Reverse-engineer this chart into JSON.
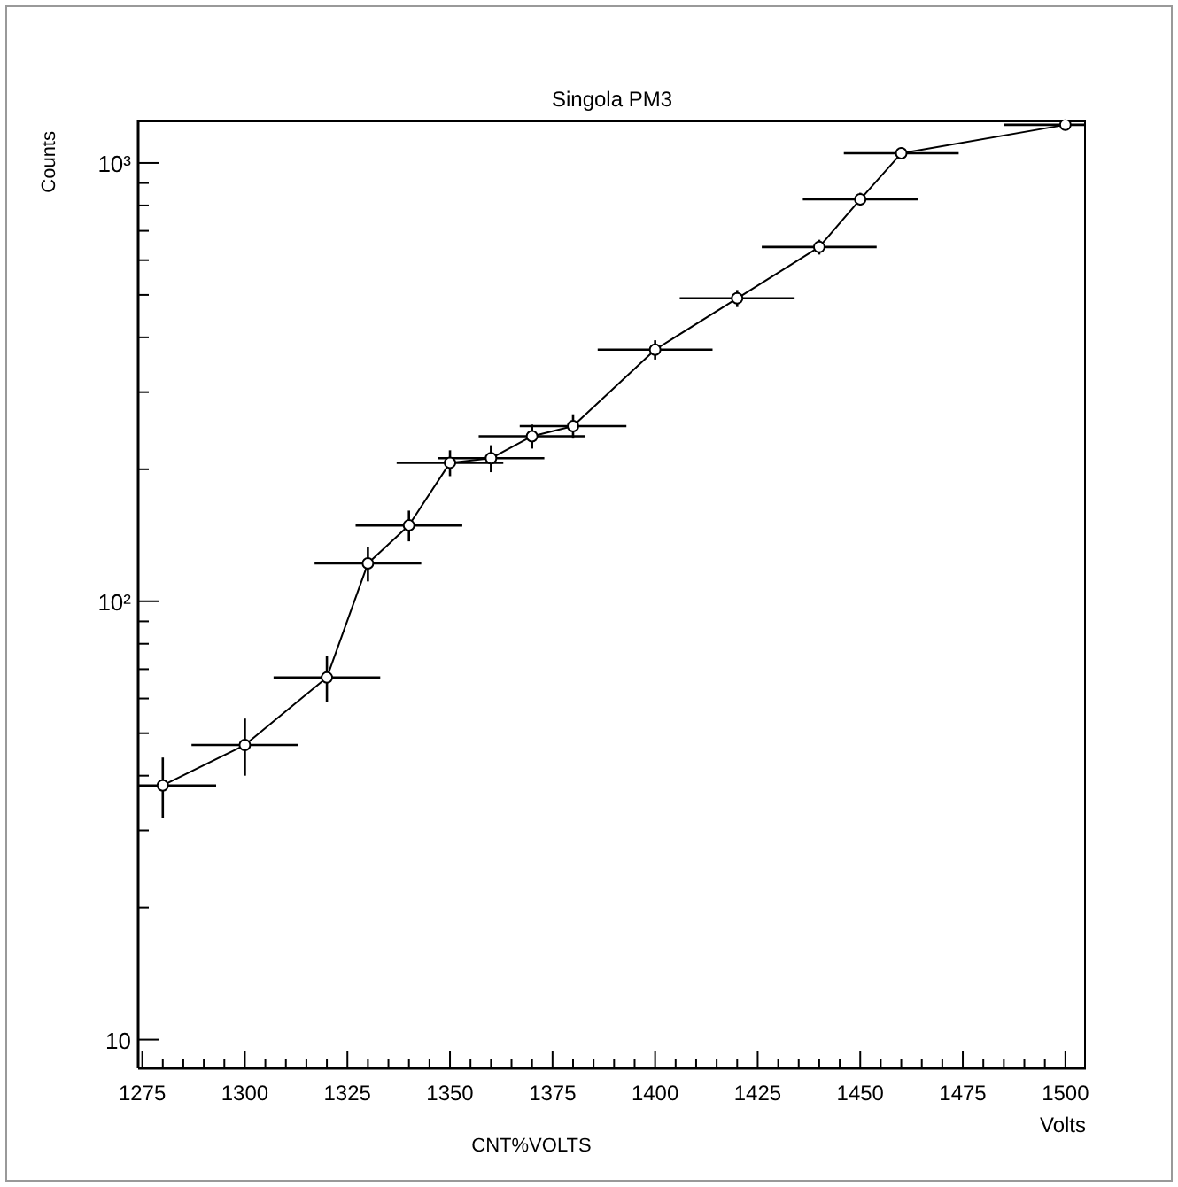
{
  "chart_data": {
    "type": "line",
    "title": "Singola PM3",
    "xlabel": "Volts",
    "ylabel": "Counts",
    "annotations": [
      "CNT%VOLTS"
    ],
    "x": [
      1280,
      1300,
      1320,
      1330,
      1340,
      1350,
      1360,
      1370,
      1380,
      1400,
      1420,
      1440,
      1450,
      1460,
      1500
    ],
    "series": [
      {
        "color": "#000000",
        "values": [
          38,
          47,
          67,
          122,
          149,
          207,
          212,
          238,
          251,
          375,
          491,
          643,
          826,
          1052,
          1222
        ],
        "errors": [
          6,
          7,
          8,
          11,
          12,
          14,
          15,
          15,
          16,
          19,
          22,
          25,
          29,
          32,
          35
        ],
        "xerrors": [
          [
            1274,
            1293
          ],
          13,
          13,
          13,
          13,
          13,
          13,
          13,
          13,
          14,
          14,
          14,
          14,
          14,
          [
            1485,
            1505
          ]
        ]
      }
    ],
    "xlim": [
      1274,
      1505
    ],
    "xticks": [
      1275,
      {
        "value": 1280,
        "label": null
      },
      {
        "value": 1285,
        "label": null
      },
      {
        "value": 1290,
        "label": null
      },
      {
        "value": 1295,
        "label": null
      },
      1300,
      {
        "value": 1305,
        "label": null
      },
      {
        "value": 1310,
        "label": null
      },
      {
        "value": 1315,
        "label": null
      },
      {
        "value": 1320,
        "label": null
      },
      1325,
      {
        "value": 1330,
        "label": null
      },
      {
        "value": 1335,
        "label": null
      },
      {
        "value": 1340,
        "label": null
      },
      {
        "value": 1345,
        "label": null
      },
      1350,
      {
        "value": 1355,
        "label": null
      },
      {
        "value": 1360,
        "label": null
      },
      {
        "value": 1365,
        "label": null
      },
      {
        "value": 1370,
        "label": null
      },
      1375,
      {
        "value": 1380,
        "label": null
      },
      {
        "value": 1385,
        "label": null
      },
      {
        "value": 1390,
        "label": null
      },
      {
        "value": 1395,
        "label": null
      },
      1400,
      {
        "value": 1405,
        "label": null
      },
      {
        "value": 1410,
        "label": null
      },
      {
        "value": 1415,
        "label": null
      },
      {
        "value": 1420,
        "label": null
      },
      1425,
      {
        "value": 1430,
        "label": null
      },
      {
        "value": 1435,
        "label": null
      },
      {
        "value": 1440,
        "label": null
      },
      {
        "value": 1445,
        "label": null
      },
      1450,
      {
        "value": 1455,
        "label": null
      },
      {
        "value": 1460,
        "label": null
      },
      {
        "value": 1465,
        "label": null
      },
      {
        "value": 1470,
        "label": null
      },
      1475,
      {
        "value": 1480,
        "label": null
      },
      {
        "value": 1485,
        "label": null
      },
      {
        "value": 1490,
        "label": null
      },
      {
        "value": 1495,
        "label": null
      },
      1500
    ],
    "ylim": [
      8.6,
      1250
    ],
    "yticks": [
      10,
      {
        "value": 20,
        "label": null
      },
      {
        "value": 30,
        "label": null
      },
      {
        "value": 40,
        "label": null
      },
      {
        "value": 50,
        "label": null
      },
      {
        "value": 60,
        "label": null
      },
      {
        "value": 70,
        "label": null
      },
      {
        "value": 80,
        "label": null
      },
      {
        "value": 90,
        "label": null
      },
      {
        "value": 100,
        "label": "10²"
      },
      {
        "value": 200,
        "label": null
      },
      {
        "value": 300,
        "label": null
      },
      {
        "value": 400,
        "label": null
      },
      {
        "value": 500,
        "label": null
      },
      {
        "value": 600,
        "label": null
      },
      {
        "value": 700,
        "label": null
      },
      {
        "value": 800,
        "label": null
      },
      {
        "value": 900,
        "label": null
      },
      {
        "value": 1000,
        "label": "10³"
      }
    ],
    "log": "y",
    "grid": false,
    "marker": "circle",
    "line_style": "solid"
  }
}
